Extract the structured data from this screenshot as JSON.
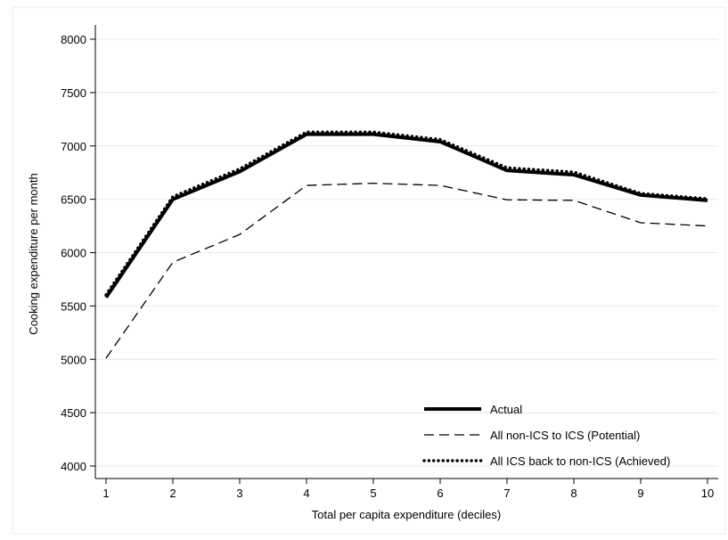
{
  "chart_data": {
    "type": "line",
    "title": "",
    "xlabel": "Total per capita expenditure (deciles)",
    "ylabel": "Cooking expenditure per month",
    "xlim": [
      1,
      10
    ],
    "ylim": [
      4000,
      8000
    ],
    "x_ticks": [
      1,
      2,
      3,
      4,
      5,
      6,
      7,
      8,
      9,
      10
    ],
    "y_ticks": [
      4000,
      4500,
      5000,
      5500,
      6000,
      6500,
      7000,
      7500,
      8000
    ],
    "grid": true,
    "legend_position": "bottom-right",
    "x": [
      1,
      2,
      3,
      4,
      5,
      6,
      7,
      8,
      9,
      10
    ],
    "series": [
      {
        "name": "Actual",
        "style": "solid-thick",
        "values": [
          5580,
          6500,
          6760,
          7110,
          7110,
          7040,
          6770,
          6730,
          6540,
          6490
        ]
      },
      {
        "name": "All non-ICS to ICS (Potential)",
        "style": "dashed",
        "values": [
          5010,
          5910,
          6170,
          6630,
          6650,
          6630,
          6495,
          6490,
          6280,
          6250
        ]
      },
      {
        "name": "All ICS back to non-ICS (Achieved)",
        "style": "dotted",
        "values": [
          5605,
          6525,
          6785,
          7130,
          7130,
          7060,
          6795,
          6755,
          6555,
          6505
        ]
      }
    ],
    "colors": {
      "line": "#000000",
      "grid": "#e8e8e8",
      "axis": "#000000"
    }
  }
}
